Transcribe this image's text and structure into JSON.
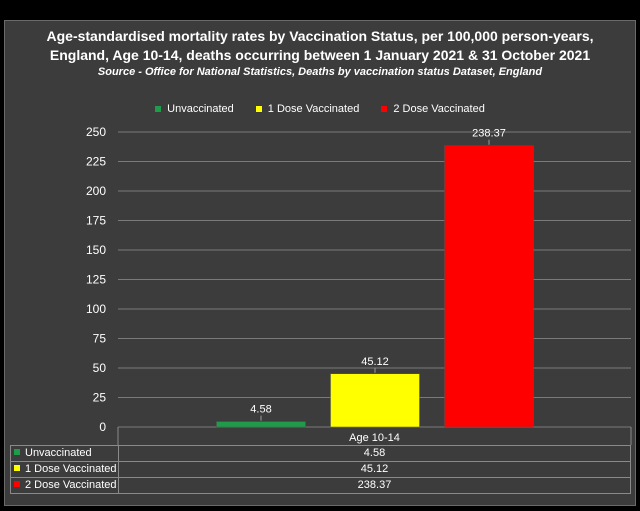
{
  "title_line1": "Age-standardised mortality rates by Vaccination Status, per 100,000 person-years,",
  "title_line2": "England, Age 10-14, deaths occurring between 1 January 2021 & 31 October 2021",
  "subtitle": "Source - Office for National Statistics, Deaths by vaccination status Dataset, England",
  "colors": {
    "background": "#3c3c3c",
    "Unvaccinated": "#1e9c4a",
    "1 Dose Vaccinated": "#ffff00",
    "2 Dose Vaccinated": "#ff0000"
  },
  "chart_data": {
    "type": "bar",
    "categories": [
      "Age 10-14"
    ],
    "series": [
      {
        "name": "Unvaccinated",
        "values": [
          4.58
        ],
        "color": "#1e9c4a"
      },
      {
        "name": "1 Dose Vaccinated",
        "values": [
          45.12
        ],
        "color": "#ffff00"
      },
      {
        "name": "2 Dose Vaccinated",
        "values": [
          238.37
        ],
        "color": "#ff0000"
      }
    ],
    "data_labels": [
      "4.58",
      "45.12",
      "238.37"
    ],
    "ylim": [
      0,
      250
    ],
    "yticks": [
      0,
      25,
      50,
      75,
      100,
      125,
      150,
      175,
      200,
      225,
      250
    ],
    "grid": true,
    "legend_position": "top",
    "data_table": true
  },
  "table": {
    "rows": [
      {
        "label": "Unvaccinated",
        "value": "4.58",
        "color": "#1e9c4a"
      },
      {
        "label": "1 Dose Vaccinated",
        "value": "45.12",
        "color": "#ffff00"
      },
      {
        "label": "2 Dose Vaccinated",
        "value": "238.37",
        "color": "#ff0000"
      }
    ]
  }
}
